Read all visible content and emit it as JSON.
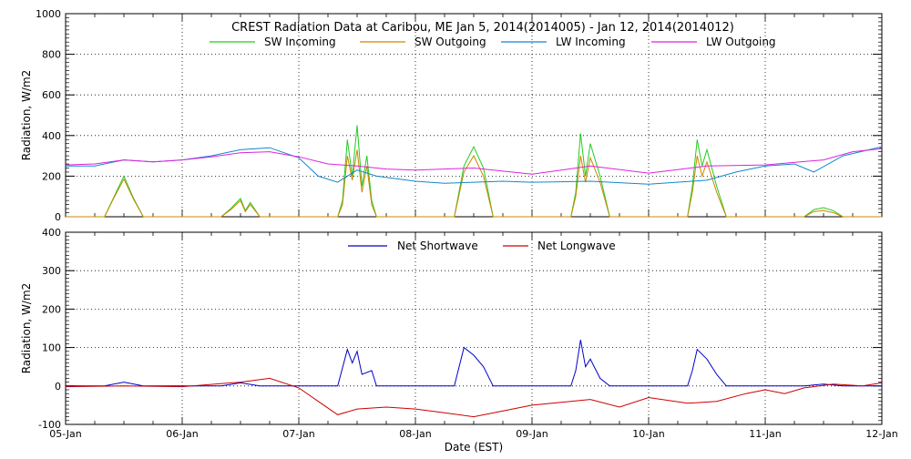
{
  "chart_data": [
    {
      "type": "line",
      "title": "CREST Radiation Data at Caribou, ME   Jan  5, 2014(2014005) - Jan 12, 2014(2014012)",
      "ylabel": "Radiation, W/m^2",
      "xlabel": "",
      "ylim": [
        0,
        1000
      ],
      "yticks": [
        0,
        200,
        400,
        600,
        800,
        1000
      ],
      "xlim": [
        "2014-01-05",
        "2014-01-12"
      ],
      "grid": true,
      "legend": "top (two rows of entries inside plot)",
      "series": [
        {
          "name": "SW Incoming",
          "color": "#22cc22",
          "points": [
            [
              "2014-01-05T00:00",
              0
            ],
            [
              "2014-01-05T08:00",
              0
            ],
            [
              "2014-01-05T10:00",
              100
            ],
            [
              "2014-01-05T12:00",
              200
            ],
            [
              "2014-01-05T14:00",
              90
            ],
            [
              "2014-01-05T16:00",
              0
            ],
            [
              "2014-01-06T08:00",
              0
            ],
            [
              "2014-01-06T10:00",
              40
            ],
            [
              "2014-01-06T12:00",
              90
            ],
            [
              "2014-01-06T13:00",
              30
            ],
            [
              "2014-01-06T14:00",
              70
            ],
            [
              "2014-01-06T16:00",
              0
            ],
            [
              "2014-01-07T08:00",
              0
            ],
            [
              "2014-01-07T09:00",
              80
            ],
            [
              "2014-01-07T10:00",
              380
            ],
            [
              "2014-01-07T11:00",
              200
            ],
            [
              "2014-01-07T12:00",
              450
            ],
            [
              "2014-01-07T13:00",
              150
            ],
            [
              "2014-01-07T14:00",
              300
            ],
            [
              "2014-01-07T15:00",
              80
            ],
            [
              "2014-01-07T16:00",
              0
            ],
            [
              "2014-01-08T08:00",
              0
            ],
            [
              "2014-01-08T10:00",
              250
            ],
            [
              "2014-01-08T12:00",
              345
            ],
            [
              "2014-01-08T14:00",
              240
            ],
            [
              "2014-01-08T16:00",
              0
            ],
            [
              "2014-01-09T08:00",
              0
            ],
            [
              "2014-01-09T09:00",
              120
            ],
            [
              "2014-01-09T10:00",
              410
            ],
            [
              "2014-01-09T11:00",
              200
            ],
            [
              "2014-01-09T12:00",
              360
            ],
            [
              "2014-01-09T14:00",
              200
            ],
            [
              "2014-01-09T16:00",
              0
            ],
            [
              "2014-01-10T08:00",
              0
            ],
            [
              "2014-01-10T09:00",
              150
            ],
            [
              "2014-01-10T10:00",
              380
            ],
            [
              "2014-01-10T11:00",
              250
            ],
            [
              "2014-01-10T12:00",
              330
            ],
            [
              "2014-01-10T14:00",
              150
            ],
            [
              "2014-01-10T16:00",
              0
            ],
            [
              "2014-01-11T08:00",
              0
            ],
            [
              "2014-01-11T10:00",
              35
            ],
            [
              "2014-01-11T12:00",
              45
            ],
            [
              "2014-01-11T14:00",
              30
            ],
            [
              "2014-01-11T16:00",
              0
            ],
            [
              "2014-01-12T00:00",
              0
            ]
          ]
        },
        {
          "name": "SW Outgoing",
          "color": "#cc8800",
          "points": [
            [
              "2014-01-05T00:00",
              0
            ],
            [
              "2014-01-05T08:00",
              0
            ],
            [
              "2014-01-05T10:00",
              95
            ],
            [
              "2014-01-05T12:00",
              185
            ],
            [
              "2014-01-05T14:00",
              85
            ],
            [
              "2014-01-05T16:00",
              0
            ],
            [
              "2014-01-06T08:00",
              0
            ],
            [
              "2014-01-06T10:00",
              35
            ],
            [
              "2014-01-06T12:00",
              80
            ],
            [
              "2014-01-06T13:00",
              25
            ],
            [
              "2014-01-06T14:00",
              60
            ],
            [
              "2014-01-06T16:00",
              0
            ],
            [
              "2014-01-07T08:00",
              0
            ],
            [
              "2014-01-07T09:00",
              60
            ],
            [
              "2014-01-07T10:00",
              300
            ],
            [
              "2014-01-07T11:00",
              180
            ],
            [
              "2014-01-07T12:00",
              330
            ],
            [
              "2014-01-07T13:00",
              120
            ],
            [
              "2014-01-07T14:00",
              250
            ],
            [
              "2014-01-07T15:00",
              60
            ],
            [
              "2014-01-07T16:00",
              0
            ],
            [
              "2014-01-08T08:00",
              0
            ],
            [
              "2014-01-08T10:00",
              220
            ],
            [
              "2014-01-08T12:00",
              300
            ],
            [
              "2014-01-08T14:00",
              200
            ],
            [
              "2014-01-08T16:00",
              0
            ],
            [
              "2014-01-09T08:00",
              0
            ],
            [
              "2014-01-09T09:00",
              100
            ],
            [
              "2014-01-09T10:00",
              300
            ],
            [
              "2014-01-09T11:00",
              170
            ],
            [
              "2014-01-09T12:00",
              290
            ],
            [
              "2014-01-09T14:00",
              170
            ],
            [
              "2014-01-09T16:00",
              0
            ],
            [
              "2014-01-10T08:00",
              0
            ],
            [
              "2014-01-10T09:00",
              120
            ],
            [
              "2014-01-10T10:00",
              300
            ],
            [
              "2014-01-10T11:00",
              200
            ],
            [
              "2014-01-10T12:00",
              270
            ],
            [
              "2014-01-10T14:00",
              120
            ],
            [
              "2014-01-10T16:00",
              0
            ],
            [
              "2014-01-11T08:00",
              0
            ],
            [
              "2014-01-11T10:00",
              25
            ],
            [
              "2014-01-11T12:00",
              30
            ],
            [
              "2014-01-11T14:00",
              20
            ],
            [
              "2014-01-11T16:00",
              0
            ],
            [
              "2014-01-12T00:00",
              0
            ]
          ]
        },
        {
          "name": "LW Incoming",
          "color": "#1188cc",
          "points": [
            [
              "2014-01-05T00:00",
              250
            ],
            [
              "2014-01-05T06:00",
              250
            ],
            [
              "2014-01-05T12:00",
              280
            ],
            [
              "2014-01-05T18:00",
              270
            ],
            [
              "2014-01-06T00:00",
              280
            ],
            [
              "2014-01-06T06:00",
              300
            ],
            [
              "2014-01-06T12:00",
              330
            ],
            [
              "2014-01-06T18:00",
              340
            ],
            [
              "2014-01-07T00:00",
              290
            ],
            [
              "2014-01-07T04:00",
              200
            ],
            [
              "2014-01-07T08:00",
              170
            ],
            [
              "2014-01-07T12:00",
              230
            ],
            [
              "2014-01-07T16:00",
              200
            ],
            [
              "2014-01-08T00:00",
              175
            ],
            [
              "2014-01-08T06:00",
              165
            ],
            [
              "2014-01-08T12:00",
              170
            ],
            [
              "2014-01-08T18:00",
              175
            ],
            [
              "2014-01-09T00:00",
              170
            ],
            [
              "2014-01-09T12:00",
              175
            ],
            [
              "2014-01-10T00:00",
              160
            ],
            [
              "2014-01-10T12:00",
              180
            ],
            [
              "2014-01-10T18:00",
              220
            ],
            [
              "2014-01-11T00:00",
              250
            ],
            [
              "2014-01-11T06:00",
              260
            ],
            [
              "2014-01-11T10:00",
              220
            ],
            [
              "2014-01-11T16:00",
              300
            ],
            [
              "2014-01-12T00:00",
              345
            ]
          ]
        },
        {
          "name": "LW Outgoing",
          "color": "#dd22dd",
          "points": [
            [
              "2014-01-05T00:00",
              255
            ],
            [
              "2014-01-05T06:00",
              260
            ],
            [
              "2014-01-05T12:00",
              280
            ],
            [
              "2014-01-05T18:00",
              270
            ],
            [
              "2014-01-06T00:00",
              280
            ],
            [
              "2014-01-06T06:00",
              295
            ],
            [
              "2014-01-06T12:00",
              315
            ],
            [
              "2014-01-06T18:00",
              320
            ],
            [
              "2014-01-07T00:00",
              295
            ],
            [
              "2014-01-07T06:00",
              260
            ],
            [
              "2014-01-07T12:00",
              250
            ],
            [
              "2014-01-07T18:00",
              235
            ],
            [
              "2014-01-08T00:00",
              230
            ],
            [
              "2014-01-08T12:00",
              240
            ],
            [
              "2014-01-09T00:00",
              210
            ],
            [
              "2014-01-09T12:00",
              250
            ],
            [
              "2014-01-10T00:00",
              215
            ],
            [
              "2014-01-10T12:00",
              250
            ],
            [
              "2014-01-11T00:00",
              255
            ],
            [
              "2014-01-11T12:00",
              280
            ],
            [
              "2014-01-11T18:00",
              320
            ],
            [
              "2014-01-12T00:00",
              335
            ]
          ]
        }
      ]
    },
    {
      "type": "line",
      "title": "",
      "ylabel": "Radiation, W/m^2",
      "xlabel": "Date (EST)",
      "ylim": [
        -100,
        400
      ],
      "yticks": [
        -100,
        0,
        100,
        200,
        300,
        400
      ],
      "xlim": [
        "2014-01-05",
        "2014-01-12"
      ],
      "xtick_labels": [
        "05-Jan",
        "06-Jan",
        "07-Jan",
        "08-Jan",
        "09-Jan",
        "10-Jan",
        "11-Jan",
        "12-Jan"
      ],
      "grid": true,
      "legend": "top (inside plot)",
      "series": [
        {
          "name": "Net Shortwave",
          "color": "#0000cc",
          "points": [
            [
              "2014-01-05T00:00",
              0
            ],
            [
              "2014-01-05T08:00",
              0
            ],
            [
              "2014-01-05T12:00",
              10
            ],
            [
              "2014-01-05T16:00",
              0
            ],
            [
              "2014-01-06T08:00",
              0
            ],
            [
              "2014-01-06T12:00",
              8
            ],
            [
              "2014-01-06T16:00",
              0
            ],
            [
              "2014-01-07T08:00",
              0
            ],
            [
              "2014-01-07T10:00",
              95
            ],
            [
              "2014-01-07T11:00",
              60
            ],
            [
              "2014-01-07T12:00",
              90
            ],
            [
              "2014-01-07T13:00",
              30
            ],
            [
              "2014-01-07T15:00",
              40
            ],
            [
              "2014-01-07T16:00",
              0
            ],
            [
              "2014-01-08T08:00",
              0
            ],
            [
              "2014-01-08T10:00",
              100
            ],
            [
              "2014-01-08T12:00",
              80
            ],
            [
              "2014-01-08T14:00",
              50
            ],
            [
              "2014-01-08T16:00",
              0
            ],
            [
              "2014-01-09T08:00",
              0
            ],
            [
              "2014-01-09T09:00",
              40
            ],
            [
              "2014-01-09T10:00",
              120
            ],
            [
              "2014-01-09T11:00",
              50
            ],
            [
              "2014-01-09T12:00",
              70
            ],
            [
              "2014-01-09T14:00",
              20
            ],
            [
              "2014-01-09T16:00",
              0
            ],
            [
              "2014-01-10T08:00",
              0
            ],
            [
              "2014-01-10T09:00",
              40
            ],
            [
              "2014-01-10T10:00",
              95
            ],
            [
              "2014-01-10T12:00",
              70
            ],
            [
              "2014-01-10T14:00",
              30
            ],
            [
              "2014-01-10T16:00",
              0
            ],
            [
              "2014-01-11T08:00",
              0
            ],
            [
              "2014-01-11T12:00",
              5
            ],
            [
              "2014-01-11T16:00",
              0
            ],
            [
              "2014-01-12T00:00",
              0
            ]
          ]
        },
        {
          "name": "Net Longwave",
          "color": "#cc0000",
          "points": [
            [
              "2014-01-05T00:00",
              -2
            ],
            [
              "2014-01-05T12:00",
              0
            ],
            [
              "2014-01-06T00:00",
              -2
            ],
            [
              "2014-01-06T12:00",
              10
            ],
            [
              "2014-01-06T18:00",
              20
            ],
            [
              "2014-01-07T00:00",
              -5
            ],
            [
              "2014-01-07T04:00",
              -40
            ],
            [
              "2014-01-07T08:00",
              -75
            ],
            [
              "2014-01-07T12:00",
              -60
            ],
            [
              "2014-01-07T18:00",
              -55
            ],
            [
              "2014-01-08T00:00",
              -60
            ],
            [
              "2014-01-08T06:00",
              -70
            ],
            [
              "2014-01-08T12:00",
              -80
            ],
            [
              "2014-01-08T18:00",
              -65
            ],
            [
              "2014-01-09T00:00",
              -50
            ],
            [
              "2014-01-09T08:00",
              -40
            ],
            [
              "2014-01-09T12:00",
              -35
            ],
            [
              "2014-01-09T18:00",
              -55
            ],
            [
              "2014-01-10T00:00",
              -30
            ],
            [
              "2014-01-10T08:00",
              -45
            ],
            [
              "2014-01-10T14:00",
              -40
            ],
            [
              "2014-01-10T20:00",
              -20
            ],
            [
              "2014-01-11T00:00",
              -10
            ],
            [
              "2014-01-11T04:00",
              -20
            ],
            [
              "2014-01-11T08:00",
              -5
            ],
            [
              "2014-01-11T14:00",
              5
            ],
            [
              "2014-01-11T20:00",
              0
            ],
            [
              "2014-01-12T00:00",
              8
            ]
          ]
        }
      ]
    }
  ]
}
